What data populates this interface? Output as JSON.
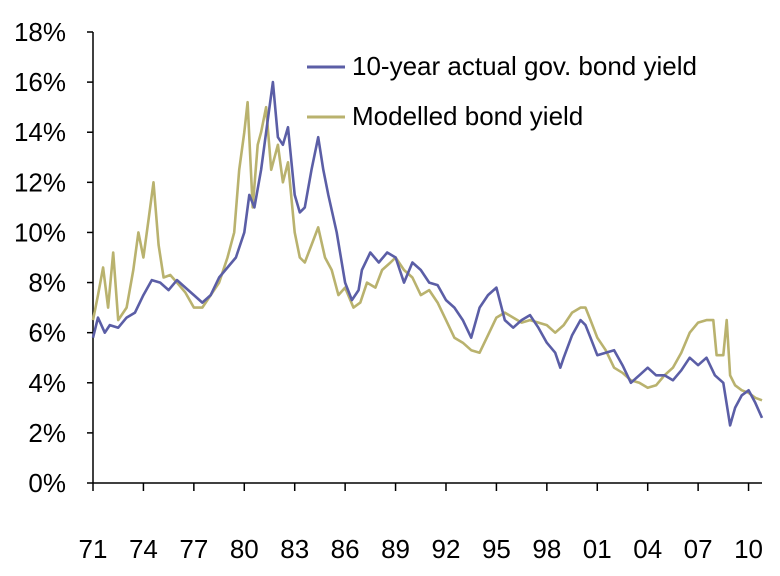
{
  "chart_data": {
    "type": "line",
    "title": "",
    "xlabel": "",
    "ylabel": "",
    "ylim": [
      0,
      18
    ],
    "xlim": [
      1971,
      2010.8
    ],
    "grid": false,
    "legend_position": "top-right",
    "y_ticks": [
      {
        "value": 0,
        "label": "0%"
      },
      {
        "value": 2,
        "label": "2%"
      },
      {
        "value": 4,
        "label": "4%"
      },
      {
        "value": 6,
        "label": "6%"
      },
      {
        "value": 8,
        "label": "8%"
      },
      {
        "value": 10,
        "label": "10%"
      },
      {
        "value": 12,
        "label": "12%"
      },
      {
        "value": 14,
        "label": "14%"
      },
      {
        "value": 16,
        "label": "16%"
      },
      {
        "value": 18,
        "label": "18%"
      }
    ],
    "x_ticks": [
      {
        "value": 1971,
        "label": "71"
      },
      {
        "value": 1974,
        "label": "74"
      },
      {
        "value": 1977,
        "label": "77"
      },
      {
        "value": 1980,
        "label": "80"
      },
      {
        "value": 1983,
        "label": "83"
      },
      {
        "value": 1986,
        "label": "86"
      },
      {
        "value": 1989,
        "label": "89"
      },
      {
        "value": 1992,
        "label": "92"
      },
      {
        "value": 1995,
        "label": "95"
      },
      {
        "value": 1998,
        "label": "98"
      },
      {
        "value": 2001,
        "label": "01"
      },
      {
        "value": 2004,
        "label": "04"
      },
      {
        "value": 2007,
        "label": "07"
      },
      {
        "value": 2010,
        "label": "10"
      }
    ],
    "series": [
      {
        "name": "10-year actual gov. bond yield",
        "color": "#5b5ea6",
        "points": [
          [
            1971.0,
            5.8
          ],
          [
            1971.3,
            6.6
          ],
          [
            1971.7,
            6.0
          ],
          [
            1972.0,
            6.3
          ],
          [
            1972.5,
            6.2
          ],
          [
            1973.0,
            6.6
          ],
          [
            1973.5,
            6.8
          ],
          [
            1974.0,
            7.5
          ],
          [
            1974.5,
            8.1
          ],
          [
            1975.0,
            8.0
          ],
          [
            1975.5,
            7.7
          ],
          [
            1976.0,
            8.1
          ],
          [
            1976.5,
            7.8
          ],
          [
            1977.0,
            7.5
          ],
          [
            1977.5,
            7.2
          ],
          [
            1978.0,
            7.5
          ],
          [
            1978.5,
            8.2
          ],
          [
            1979.0,
            8.6
          ],
          [
            1979.5,
            9.0
          ],
          [
            1980.0,
            10.0
          ],
          [
            1980.3,
            11.5
          ],
          [
            1980.6,
            11.0
          ],
          [
            1981.0,
            12.5
          ],
          [
            1981.4,
            14.5
          ],
          [
            1981.7,
            16.0
          ],
          [
            1982.0,
            13.8
          ],
          [
            1982.3,
            13.5
          ],
          [
            1982.6,
            14.2
          ],
          [
            1983.0,
            11.5
          ],
          [
            1983.3,
            10.8
          ],
          [
            1983.6,
            11.0
          ],
          [
            1984.0,
            12.5
          ],
          [
            1984.4,
            13.8
          ],
          [
            1984.7,
            12.5
          ],
          [
            1985.0,
            11.5
          ],
          [
            1985.5,
            10.0
          ],
          [
            1986.0,
            8.0
          ],
          [
            1986.4,
            7.3
          ],
          [
            1986.8,
            7.7
          ],
          [
            1987.0,
            8.5
          ],
          [
            1987.5,
            9.2
          ],
          [
            1988.0,
            8.8
          ],
          [
            1988.5,
            9.2
          ],
          [
            1989.0,
            9.0
          ],
          [
            1989.5,
            8.0
          ],
          [
            1990.0,
            8.8
          ],
          [
            1990.5,
            8.5
          ],
          [
            1991.0,
            8.0
          ],
          [
            1991.5,
            7.9
          ],
          [
            1992.0,
            7.3
          ],
          [
            1992.5,
            7.0
          ],
          [
            1993.0,
            6.5
          ],
          [
            1993.5,
            5.8
          ],
          [
            1994.0,
            7.0
          ],
          [
            1994.5,
            7.5
          ],
          [
            1995.0,
            7.8
          ],
          [
            1995.5,
            6.5
          ],
          [
            1996.0,
            6.2
          ],
          [
            1996.5,
            6.5
          ],
          [
            1997.0,
            6.7
          ],
          [
            1997.5,
            6.2
          ],
          [
            1998.0,
            5.6
          ],
          [
            1998.5,
            5.2
          ],
          [
            1998.8,
            4.6
          ],
          [
            1999.0,
            5.0
          ],
          [
            1999.5,
            5.9
          ],
          [
            2000.0,
            6.5
          ],
          [
            2000.3,
            6.3
          ],
          [
            2000.6,
            5.8
          ],
          [
            2001.0,
            5.1
          ],
          [
            2001.5,
            5.2
          ],
          [
            2002.0,
            5.3
          ],
          [
            2002.5,
            4.7
          ],
          [
            2003.0,
            4.0
          ],
          [
            2003.5,
            4.3
          ],
          [
            2004.0,
            4.6
          ],
          [
            2004.5,
            4.3
          ],
          [
            2005.0,
            4.3
          ],
          [
            2005.5,
            4.1
          ],
          [
            2006.0,
            4.5
          ],
          [
            2006.5,
            5.0
          ],
          [
            2007.0,
            4.7
          ],
          [
            2007.5,
            5.0
          ],
          [
            2008.0,
            4.3
          ],
          [
            2008.5,
            4.0
          ],
          [
            2008.9,
            2.3
          ],
          [
            2009.2,
            3.0
          ],
          [
            2009.6,
            3.5
          ],
          [
            2010.0,
            3.7
          ],
          [
            2010.4,
            3.2
          ],
          [
            2010.8,
            2.6
          ]
        ]
      },
      {
        "name": "Modelled bond yield",
        "color": "#b9b26e",
        "points": [
          [
            1971.0,
            6.5
          ],
          [
            1971.3,
            7.5
          ],
          [
            1971.6,
            8.6
          ],
          [
            1971.9,
            7.0
          ],
          [
            1972.2,
            9.2
          ],
          [
            1972.5,
            6.5
          ],
          [
            1973.0,
            7.0
          ],
          [
            1973.4,
            8.5
          ],
          [
            1973.7,
            10.0
          ],
          [
            1974.0,
            9.0
          ],
          [
            1974.3,
            10.5
          ],
          [
            1974.6,
            12.0
          ],
          [
            1974.9,
            9.5
          ],
          [
            1975.2,
            8.2
          ],
          [
            1975.6,
            8.3
          ],
          [
            1976.0,
            8.0
          ],
          [
            1976.5,
            7.6
          ],
          [
            1977.0,
            7.0
          ],
          [
            1977.5,
            7.0
          ],
          [
            1978.0,
            7.5
          ],
          [
            1978.5,
            8.0
          ],
          [
            1979.0,
            9.0
          ],
          [
            1979.4,
            10.0
          ],
          [
            1979.7,
            12.5
          ],
          [
            1980.0,
            14.0
          ],
          [
            1980.2,
            15.2
          ],
          [
            1980.5,
            11.0
          ],
          [
            1980.8,
            13.5
          ],
          [
            1981.0,
            14.0
          ],
          [
            1981.3,
            15.0
          ],
          [
            1981.6,
            12.5
          ],
          [
            1982.0,
            13.5
          ],
          [
            1982.3,
            12.0
          ],
          [
            1982.6,
            12.8
          ],
          [
            1983.0,
            10.0
          ],
          [
            1983.3,
            9.0
          ],
          [
            1983.6,
            8.8
          ],
          [
            1984.0,
            9.5
          ],
          [
            1984.4,
            10.2
          ],
          [
            1984.8,
            9.0
          ],
          [
            1985.2,
            8.5
          ],
          [
            1985.6,
            7.5
          ],
          [
            1986.0,
            7.8
          ],
          [
            1986.5,
            7.0
          ],
          [
            1986.9,
            7.2
          ],
          [
            1987.3,
            8.0
          ],
          [
            1987.8,
            7.8
          ],
          [
            1988.2,
            8.5
          ],
          [
            1988.7,
            8.8
          ],
          [
            1989.0,
            9.0
          ],
          [
            1989.5,
            8.5
          ],
          [
            1990.0,
            8.2
          ],
          [
            1990.5,
            7.5
          ],
          [
            1991.0,
            7.7
          ],
          [
            1991.5,
            7.2
          ],
          [
            1992.0,
            6.5
          ],
          [
            1992.5,
            5.8
          ],
          [
            1993.0,
            5.6
          ],
          [
            1993.5,
            5.3
          ],
          [
            1994.0,
            5.2
          ],
          [
            1994.5,
            5.9
          ],
          [
            1995.0,
            6.6
          ],
          [
            1995.5,
            6.8
          ],
          [
            1996.0,
            6.6
          ],
          [
            1996.5,
            6.4
          ],
          [
            1997.0,
            6.5
          ],
          [
            1997.5,
            6.4
          ],
          [
            1998.0,
            6.3
          ],
          [
            1998.5,
            6.0
          ],
          [
            1999.0,
            6.3
          ],
          [
            1999.5,
            6.8
          ],
          [
            2000.0,
            7.0
          ],
          [
            2000.3,
            7.0
          ],
          [
            2000.6,
            6.5
          ],
          [
            2001.0,
            5.8
          ],
          [
            2001.5,
            5.3
          ],
          [
            2002.0,
            4.6
          ],
          [
            2002.5,
            4.4
          ],
          [
            2003.0,
            4.1
          ],
          [
            2003.5,
            4.0
          ],
          [
            2004.0,
            3.8
          ],
          [
            2004.5,
            3.9
          ],
          [
            2005.0,
            4.3
          ],
          [
            2005.5,
            4.6
          ],
          [
            2006.0,
            5.2
          ],
          [
            2006.5,
            6.0
          ],
          [
            2007.0,
            6.4
          ],
          [
            2007.5,
            6.5
          ],
          [
            2007.9,
            6.5
          ],
          [
            2008.1,
            5.1
          ],
          [
            2008.5,
            5.1
          ],
          [
            2008.7,
            6.5
          ],
          [
            2008.9,
            4.3
          ],
          [
            2009.2,
            3.9
          ],
          [
            2009.6,
            3.7
          ],
          [
            2010.0,
            3.6
          ],
          [
            2010.4,
            3.4
          ],
          [
            2010.8,
            3.3
          ]
        ]
      }
    ]
  }
}
